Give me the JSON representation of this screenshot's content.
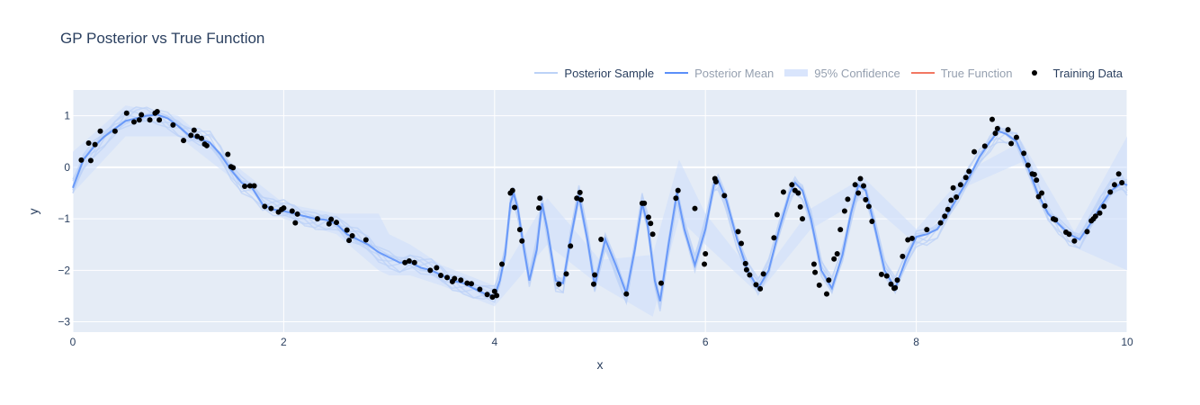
{
  "chart_data": {
    "type": "line",
    "title": "GP Posterior vs True Function",
    "xlabel": "x",
    "ylabel": "y",
    "xlim": [
      0,
      10
    ],
    "ylim": [
      -3.2,
      1.5
    ],
    "xticks": [
      0,
      2,
      4,
      6,
      8,
      10
    ],
    "yticks": [
      -3,
      -2,
      -1,
      0,
      1
    ],
    "grid": true,
    "legend_position": "top-right",
    "colors": {
      "plot_bg": "#e5ecf6",
      "grid": "#ffffff",
      "posterior_sample": "#bcd2f7",
      "posterior_mean": "#5b8ff9",
      "confidence": "#cfdffb",
      "true_function": "#ef553b",
      "training_data": "#000000"
    },
    "legend": [
      {
        "name": "Posterior Sample",
        "dim": false
      },
      {
        "name": "Posterior Mean",
        "dim": true
      },
      {
        "name": "95% Confidence",
        "dim": true
      },
      {
        "name": "True Function",
        "dim": true
      },
      {
        "name": "Training Data",
        "dim": false
      }
    ],
    "posterior_mean": {
      "name": "Posterior Mean",
      "points": [
        [
          0,
          -0.4
        ],
        [
          0.1,
          0.15
        ],
        [
          0.2,
          0.4
        ],
        [
          0.3,
          0.6
        ],
        [
          0.4,
          0.75
        ],
        [
          0.5,
          0.9
        ],
        [
          0.6,
          0.95
        ],
        [
          0.7,
          1.0
        ],
        [
          0.8,
          1.02
        ],
        [
          0.9,
          0.95
        ],
        [
          1.0,
          0.8
        ],
        [
          1.1,
          0.62
        ],
        [
          1.2,
          0.55
        ],
        [
          1.3,
          0.48
        ],
        [
          1.4,
          0.25
        ],
        [
          1.5,
          -0.05
        ],
        [
          1.6,
          -0.3
        ],
        [
          1.7,
          -0.4
        ],
        [
          1.8,
          -0.72
        ],
        [
          1.9,
          -0.82
        ],
        [
          2.0,
          -0.85
        ],
        [
          2.1,
          -0.9
        ],
        [
          2.2,
          -0.95
        ],
        [
          2.3,
          -1.0
        ],
        [
          2.4,
          -1.02
        ],
        [
          2.5,
          -1.1
        ],
        [
          2.6,
          -1.3
        ],
        [
          2.7,
          -1.4
        ],
        [
          2.8,
          -1.5
        ],
        [
          2.9,
          -1.65
        ],
        [
          3.0,
          -1.75
        ],
        [
          3.1,
          -1.85
        ],
        [
          3.2,
          -1.85
        ],
        [
          3.3,
          -1.95
        ],
        [
          3.4,
          -2.0
        ],
        [
          3.5,
          -2.1
        ],
        [
          3.6,
          -2.2
        ],
        [
          3.7,
          -2.25
        ],
        [
          3.8,
          -2.35
        ],
        [
          3.9,
          -2.45
        ],
        [
          4.0,
          -2.5
        ],
        [
          4.05,
          -2.2
        ],
        [
          4.1,
          -1.7
        ],
        [
          4.15,
          -0.7
        ],
        [
          4.18,
          -0.5
        ],
        [
          4.22,
          -0.8
        ],
        [
          4.28,
          -1.6
        ],
        [
          4.33,
          -2.2
        ],
        [
          4.4,
          -1.6
        ],
        [
          4.45,
          -0.7
        ],
        [
          4.5,
          -1.2
        ],
        [
          4.58,
          -2.2
        ],
        [
          4.65,
          -2.25
        ],
        [
          4.72,
          -1.4
        ],
        [
          4.8,
          -0.55
        ],
        [
          4.88,
          -1.4
        ],
        [
          4.95,
          -2.3
        ],
        [
          5.05,
          -1.4
        ],
        [
          5.15,
          -1.9
        ],
        [
          5.25,
          -2.45
        ],
        [
          5.33,
          -1.6
        ],
        [
          5.4,
          -0.7
        ],
        [
          5.45,
          -1.1
        ],
        [
          5.52,
          -2.2
        ],
        [
          5.57,
          -2.6
        ],
        [
          5.65,
          -1.5
        ],
        [
          5.73,
          -0.5
        ],
        [
          5.8,
          -1.2
        ],
        [
          5.9,
          -1.9
        ],
        [
          6.0,
          -1.2
        ],
        [
          6.08,
          -0.35
        ],
        [
          6.12,
          -0.25
        ],
        [
          6.2,
          -0.65
        ],
        [
          6.3,
          -1.4
        ],
        [
          6.4,
          -2.0
        ],
        [
          6.5,
          -2.35
        ],
        [
          6.6,
          -2.0
        ],
        [
          6.7,
          -1.2
        ],
        [
          6.8,
          -0.5
        ],
        [
          6.85,
          -0.3
        ],
        [
          6.92,
          -0.45
        ],
        [
          7.0,
          -1.0
        ],
        [
          7.1,
          -2.0
        ],
        [
          7.2,
          -2.35
        ],
        [
          7.3,
          -1.7
        ],
        [
          7.38,
          -0.9
        ],
        [
          7.45,
          -0.35
        ],
        [
          7.52,
          -0.45
        ],
        [
          7.6,
          -1.1
        ],
        [
          7.7,
          -2.0
        ],
        [
          7.8,
          -2.35
        ],
        [
          7.9,
          -1.8
        ],
        [
          8.0,
          -1.35
        ],
        [
          8.1,
          -1.3
        ],
        [
          8.2,
          -1.2
        ],
        [
          8.3,
          -0.9
        ],
        [
          8.4,
          -0.55
        ],
        [
          8.5,
          -0.2
        ],
        [
          8.6,
          0.2
        ],
        [
          8.7,
          0.5
        ],
        [
          8.78,
          0.7
        ],
        [
          8.85,
          0.65
        ],
        [
          8.95,
          0.5
        ],
        [
          9.05,
          0.05
        ],
        [
          9.15,
          -0.5
        ],
        [
          9.25,
          -0.9
        ],
        [
          9.35,
          -1.1
        ],
        [
          9.45,
          -1.3
        ],
        [
          9.55,
          -1.4
        ],
        [
          9.65,
          -1.1
        ],
        [
          9.75,
          -0.75
        ],
        [
          9.85,
          -0.45
        ],
        [
          9.95,
          -0.3
        ],
        [
          10.0,
          -0.35
        ]
      ]
    },
    "confidence_band": {
      "name": "95% Confidence",
      "points": [
        [
          0,
          -0.5,
          0.3
        ],
        [
          0.5,
          0.6,
          1.2
        ],
        [
          1.0,
          0.6,
          1.0
        ],
        [
          1.5,
          -0.2,
          0.1
        ],
        [
          2.0,
          -1.0,
          -0.7
        ],
        [
          2.5,
          -1.3,
          -0.9
        ],
        [
          2.9,
          -2.0,
          -0.9
        ],
        [
          3.0,
          -2.1,
          -1.3
        ],
        [
          3.2,
          -2.1,
          -1.5
        ],
        [
          3.5,
          -2.3,
          -1.9
        ],
        [
          4.0,
          -2.7,
          -2.3
        ],
        [
          4.5,
          -1.5,
          -0.6
        ],
        [
          5.0,
          -2.3,
          -1.8
        ],
        [
          5.5,
          -2.9,
          -1.7
        ],
        [
          5.75,
          -1.0,
          0.15
        ],
        [
          6.0,
          -1.5,
          -0.9
        ],
        [
          6.5,
          -2.45,
          -2.2
        ],
        [
          7.0,
          -1.2,
          -0.8
        ],
        [
          7.5,
          -0.6,
          -0.2
        ],
        [
          8.0,
          -1.5,
          -1.2
        ],
        [
          8.5,
          -0.35,
          -0.05
        ],
        [
          9.0,
          0.1,
          0.5
        ],
        [
          9.5,
          -1.55,
          -1.25
        ],
        [
          10.0,
          -2.0,
          0.6
        ]
      ]
    },
    "posterior_samples": {
      "name": "Posterior Sample",
      "offsets": [
        0.12,
        -0.1,
        0.2,
        -0.18,
        0.06,
        -0.05,
        0.15,
        -0.22
      ]
    },
    "training_data": {
      "name": "Training Data",
      "points": [
        [
          0.08,
          0.14
        ],
        [
          0.15,
          0.47
        ],
        [
          0.17,
          0.13
        ],
        [
          0.21,
          0.44
        ],
        [
          0.26,
          0.7
        ],
        [
          0.4,
          0.7
        ],
        [
          0.51,
          1.05
        ],
        [
          0.58,
          0.88
        ],
        [
          0.63,
          0.92
        ],
        [
          0.65,
          1.02
        ],
        [
          0.73,
          0.92
        ],
        [
          0.78,
          1.05
        ],
        [
          0.8,
          1.08
        ],
        [
          0.82,
          0.92
        ],
        [
          0.95,
          0.82
        ],
        [
          1.05,
          0.52
        ],
        [
          1.12,
          0.62
        ],
        [
          1.15,
          0.72
        ],
        [
          1.18,
          0.6
        ],
        [
          1.22,
          0.56
        ],
        [
          1.25,
          0.45
        ],
        [
          1.27,
          0.42
        ],
        [
          1.47,
          0.25
        ],
        [
          1.5,
          0.01
        ],
        [
          1.52,
          -0.01
        ],
        [
          1.63,
          -0.37
        ],
        [
          1.68,
          -0.36
        ],
        [
          1.72,
          -0.36
        ],
        [
          1.82,
          -0.76
        ],
        [
          1.88,
          -0.8
        ],
        [
          1.95,
          -0.87
        ],
        [
          1.98,
          -0.82
        ],
        [
          2.0,
          -0.79
        ],
        [
          2.08,
          -0.85
        ],
        [
          2.11,
          -1.08
        ],
        [
          2.13,
          -0.91
        ],
        [
          2.32,
          -1.0
        ],
        [
          2.43,
          -1.1
        ],
        [
          2.45,
          -1.01
        ],
        [
          2.5,
          -1.07
        ],
        [
          2.6,
          -1.22
        ],
        [
          2.62,
          -1.42
        ],
        [
          2.65,
          -1.33
        ],
        [
          2.78,
          -1.41
        ],
        [
          3.15,
          -1.85
        ],
        [
          3.19,
          -1.82
        ],
        [
          3.24,
          -1.85
        ],
        [
          3.39,
          -2.0
        ],
        [
          3.45,
          -1.95
        ],
        [
          3.49,
          -2.1
        ],
        [
          3.55,
          -2.14
        ],
        [
          3.6,
          -2.22
        ],
        [
          3.62,
          -2.16
        ],
        [
          3.68,
          -2.19
        ],
        [
          3.74,
          -2.25
        ],
        [
          3.78,
          -2.26
        ],
        [
          3.86,
          -2.37
        ],
        [
          3.93,
          -2.47
        ],
        [
          3.98,
          -2.52
        ],
        [
          4.0,
          -2.41
        ],
        [
          4.02,
          -2.49
        ],
        [
          4.07,
          -1.88
        ],
        [
          4.15,
          -0.5
        ],
        [
          4.17,
          -0.45
        ],
        [
          4.19,
          -0.78
        ],
        [
          4.24,
          -1.21
        ],
        [
          4.26,
          -1.43
        ],
        [
          4.42,
          -0.79
        ],
        [
          4.43,
          -0.6
        ],
        [
          4.61,
          -2.27
        ],
        [
          4.68,
          -2.07
        ],
        [
          4.72,
          -1.53
        ],
        [
          4.78,
          -0.6
        ],
        [
          4.81,
          -0.49
        ],
        [
          4.82,
          -0.63
        ],
        [
          4.94,
          -2.27
        ],
        [
          4.95,
          -2.09
        ],
        [
          5.01,
          -1.4
        ],
        [
          5.25,
          -2.46
        ],
        [
          5.4,
          -0.7
        ],
        [
          5.42,
          -0.7
        ],
        [
          5.46,
          -0.97
        ],
        [
          5.48,
          -1.09
        ],
        [
          5.5,
          -1.3
        ],
        [
          5.58,
          -2.25
        ],
        [
          5.72,
          -0.6
        ],
        [
          5.74,
          -0.45
        ],
        [
          5.9,
          -0.8
        ],
        [
          5.99,
          -1.88
        ],
        [
          6.0,
          -1.68
        ],
        [
          6.09,
          -0.22
        ],
        [
          6.1,
          -0.28
        ],
        [
          6.18,
          -0.55
        ],
        [
          6.31,
          -1.25
        ],
        [
          6.34,
          -1.48
        ],
        [
          6.38,
          -1.87
        ],
        [
          6.39,
          -1.99
        ],
        [
          6.42,
          -2.09
        ],
        [
          6.48,
          -2.28
        ],
        [
          6.52,
          -2.36
        ],
        [
          6.55,
          -2.07
        ],
        [
          6.65,
          -1.37
        ],
        [
          6.68,
          -0.92
        ],
        [
          6.74,
          -0.48
        ],
        [
          6.82,
          -0.34
        ],
        [
          6.85,
          -0.45
        ],
        [
          6.88,
          -0.5
        ],
        [
          6.9,
          -0.77
        ],
        [
          6.92,
          -1.0
        ],
        [
          7.03,
          -1.88
        ],
        [
          7.04,
          -2.04
        ],
        [
          7.08,
          -2.29
        ],
        [
          7.15,
          -2.46
        ],
        [
          7.17,
          -2.19
        ],
        [
          7.22,
          -1.78
        ],
        [
          7.25,
          -1.68
        ],
        [
          7.28,
          -1.21
        ],
        [
          7.32,
          -0.85
        ],
        [
          7.35,
          -0.62
        ],
        [
          7.42,
          -0.34
        ],
        [
          7.45,
          -0.5
        ],
        [
          7.47,
          -0.22
        ],
        [
          7.5,
          -0.36
        ],
        [
          7.52,
          -0.63
        ],
        [
          7.55,
          -0.76
        ],
        [
          7.58,
          -1.05
        ],
        [
          7.67,
          -2.08
        ],
        [
          7.72,
          -2.11
        ],
        [
          7.76,
          -2.27
        ],
        [
          7.79,
          -2.35
        ],
        [
          7.8,
          -2.34
        ],
        [
          7.82,
          -2.19
        ],
        [
          7.87,
          -1.73
        ],
        [
          7.92,
          -1.41
        ],
        [
          7.96,
          -1.38
        ],
        [
          8.1,
          -1.21
        ],
        [
          8.23,
          -1.08
        ],
        [
          8.27,
          -0.95
        ],
        [
          8.3,
          -0.82
        ],
        [
          8.33,
          -0.64
        ],
        [
          8.35,
          -0.4
        ],
        [
          8.38,
          -0.58
        ],
        [
          8.42,
          -0.34
        ],
        [
          8.47,
          -0.2
        ],
        [
          8.5,
          -0.08
        ],
        [
          8.55,
          0.3
        ],
        [
          8.65,
          0.41
        ],
        [
          8.72,
          0.93
        ],
        [
          8.75,
          0.66
        ],
        [
          8.77,
          0.75
        ],
        [
          8.87,
          0.73
        ],
        [
          8.9,
          0.46
        ],
        [
          8.95,
          0.58
        ],
        [
          9.02,
          0.27
        ],
        [
          9.06,
          0.04
        ],
        [
          9.1,
          -0.13
        ],
        [
          9.12,
          -0.14
        ],
        [
          9.14,
          -0.25
        ],
        [
          9.16,
          -0.57
        ],
        [
          9.19,
          -0.5
        ],
        [
          9.22,
          -0.75
        ],
        [
          9.3,
          -1.0
        ],
        [
          9.32,
          -1.02
        ],
        [
          9.42,
          -1.26
        ],
        [
          9.45,
          -1.3
        ],
        [
          9.5,
          -1.43
        ],
        [
          9.62,
          -1.25
        ],
        [
          9.66,
          -1.04
        ],
        [
          9.68,
          -1.0
        ],
        [
          9.7,
          -0.95
        ],
        [
          9.74,
          -0.89
        ],
        [
          9.78,
          -0.76
        ],
        [
          9.84,
          -0.48
        ],
        [
          9.88,
          -0.34
        ],
        [
          9.92,
          -0.13
        ],
        [
          9.95,
          -0.3
        ]
      ]
    }
  }
}
